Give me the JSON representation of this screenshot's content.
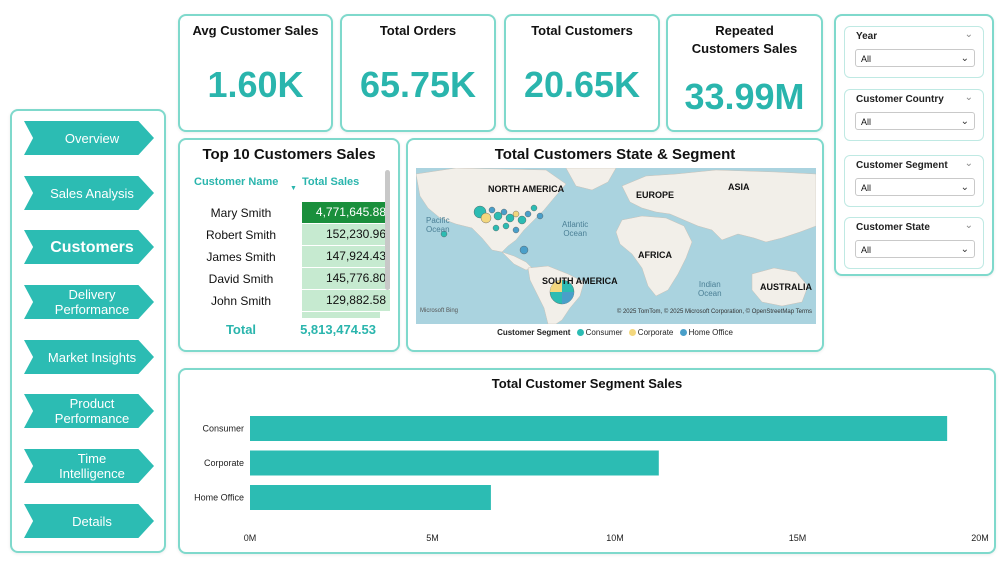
{
  "kpis": {
    "avg_sales": {
      "label": "Avg Customer Sales",
      "value": "1.60K"
    },
    "total_orders": {
      "label": "Total Orders",
      "value": "65.75K"
    },
    "total_customers": {
      "label": "Total Customers",
      "value": "20.65K"
    },
    "repeated_sales": {
      "label_line1": "Repeated",
      "label_line2": "Customers Sales",
      "value": "33.99M"
    }
  },
  "nav": {
    "items": [
      {
        "label": "Overview"
      },
      {
        "label": "Sales Analysis"
      },
      {
        "label": "Customers"
      },
      {
        "label_line1": "Delivery",
        "label_line2": "Performance"
      },
      {
        "label": "Market Insights"
      },
      {
        "label_line1": "Product",
        "label_line2": "Performance"
      },
      {
        "label_line1": "Time",
        "label_line2": "Intelligence"
      },
      {
        "label": "Details"
      }
    ]
  },
  "filters": [
    {
      "title": "Year",
      "value": "All"
    },
    {
      "title": "Customer Country",
      "value": "All"
    },
    {
      "title": "Customer Segment",
      "value": "All"
    },
    {
      "title": "Customer State",
      "value": "All"
    }
  ],
  "top10": {
    "title": "Top 10 Customers Sales",
    "col_name": "Customer Name",
    "col_sales": "Total Sales",
    "rows": [
      {
        "name": "Mary Smith",
        "sales": "4,771,645.88"
      },
      {
        "name": "Robert Smith",
        "sales": "152,230.96"
      },
      {
        "name": "James Smith",
        "sales": "147,924.43"
      },
      {
        "name": "David Smith",
        "sales": "145,776.80"
      },
      {
        "name": "John Smith",
        "sales": "129,882.58"
      }
    ],
    "total_label": "Total",
    "total_value": "5,813,474.53"
  },
  "map": {
    "title": "Total Customers State & Segment",
    "labels": {
      "north_america": "NORTH AMERICA",
      "europe": "EUROPE",
      "asia": "ASIA",
      "pacific": "Pacific",
      "ocean1": "Ocean",
      "atlantic": "Atlantic",
      "ocean2": "Ocean",
      "africa": "AFRICA",
      "south_america": "SOUTH AMERICA",
      "indian": "Indian",
      "ocean3": "Ocean",
      "australia": "AUSTRALIA"
    },
    "bing": "Microsoft Bing",
    "attribution": "© 2025 TomTom, © 2025 Microsoft Corporation, © OpenStreetMap  Terms",
    "legend_title": "Customer Segment",
    "legend": [
      {
        "name": "Consumer",
        "color": "#2cbcb3"
      },
      {
        "name": "Corporate",
        "color": "#f3d77e"
      },
      {
        "name": "Home Office",
        "color": "#4a9fc9"
      }
    ]
  },
  "chart_data": {
    "type": "bar",
    "orientation": "horizontal",
    "title": "Total Customer Segment Sales",
    "categories": [
      "Consumer",
      "Corporate",
      "Home Office"
    ],
    "values": [
      19.1,
      11.2,
      6.6
    ],
    "unit": "M",
    "xlim": [
      0,
      20
    ],
    "xticks": [
      "0M",
      "5M",
      "10M",
      "15M",
      "20M"
    ],
    "tick_values": [
      0,
      5,
      10,
      15,
      20
    ],
    "bar_color": "#2cbcb3"
  }
}
